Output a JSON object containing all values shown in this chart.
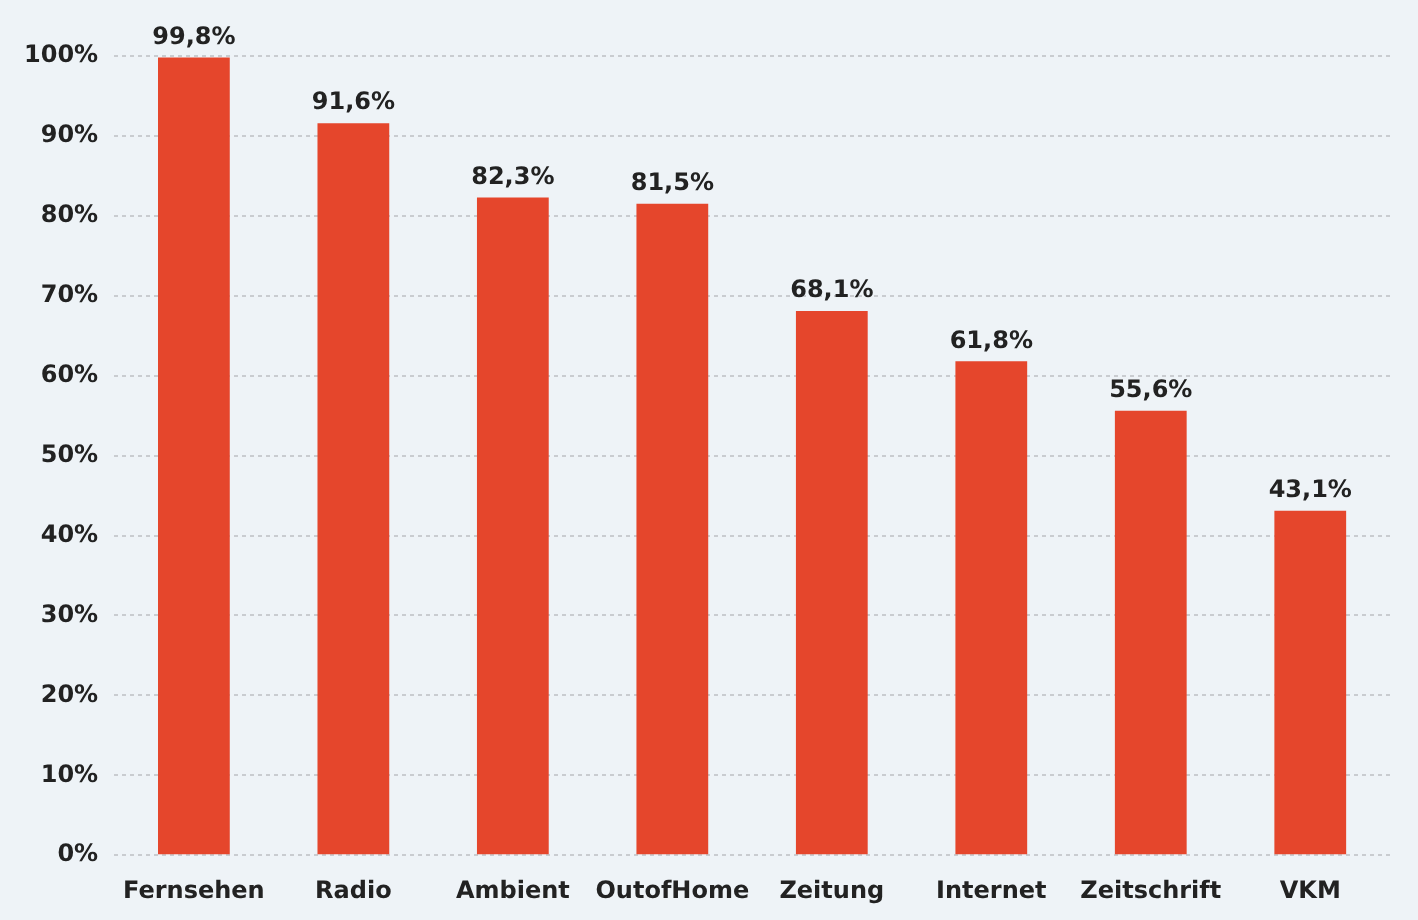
{
  "chart_data": {
    "type": "bar",
    "categories": [
      "Fernsehen",
      "Radio",
      "Ambient",
      "OutofHome",
      "Zeitung",
      "Internet",
      "Zeitschrift",
      "VKM"
    ],
    "values": [
      99.8,
      91.6,
      82.3,
      81.5,
      68.1,
      61.8,
      55.6,
      43.1
    ],
    "value_labels": [
      "99,8%",
      "91,6%",
      "82,3%",
      "81,5%",
      "68,1%",
      "61,8%",
      "55,6%",
      "43,1%"
    ],
    "color": "#e5462c",
    "ylim": [
      0,
      100
    ],
    "yticks": [
      {
        "value": 0,
        "label": "0%"
      },
      {
        "value": 10,
        "label": "10%"
      },
      {
        "value": 20,
        "label": "20%"
      },
      {
        "value": 30,
        "label": "30%"
      },
      {
        "value": 40,
        "label": "40%"
      },
      {
        "value": 50,
        "label": "50%"
      },
      {
        "value": 60,
        "label": "60%"
      },
      {
        "value": 70,
        "label": "70%"
      },
      {
        "value": 80,
        "label": "80%"
      },
      {
        "value": 90,
        "label": "90%"
      },
      {
        "value": 100,
        "label": "100%"
      }
    ],
    "grid": "y",
    "legend": false
  }
}
